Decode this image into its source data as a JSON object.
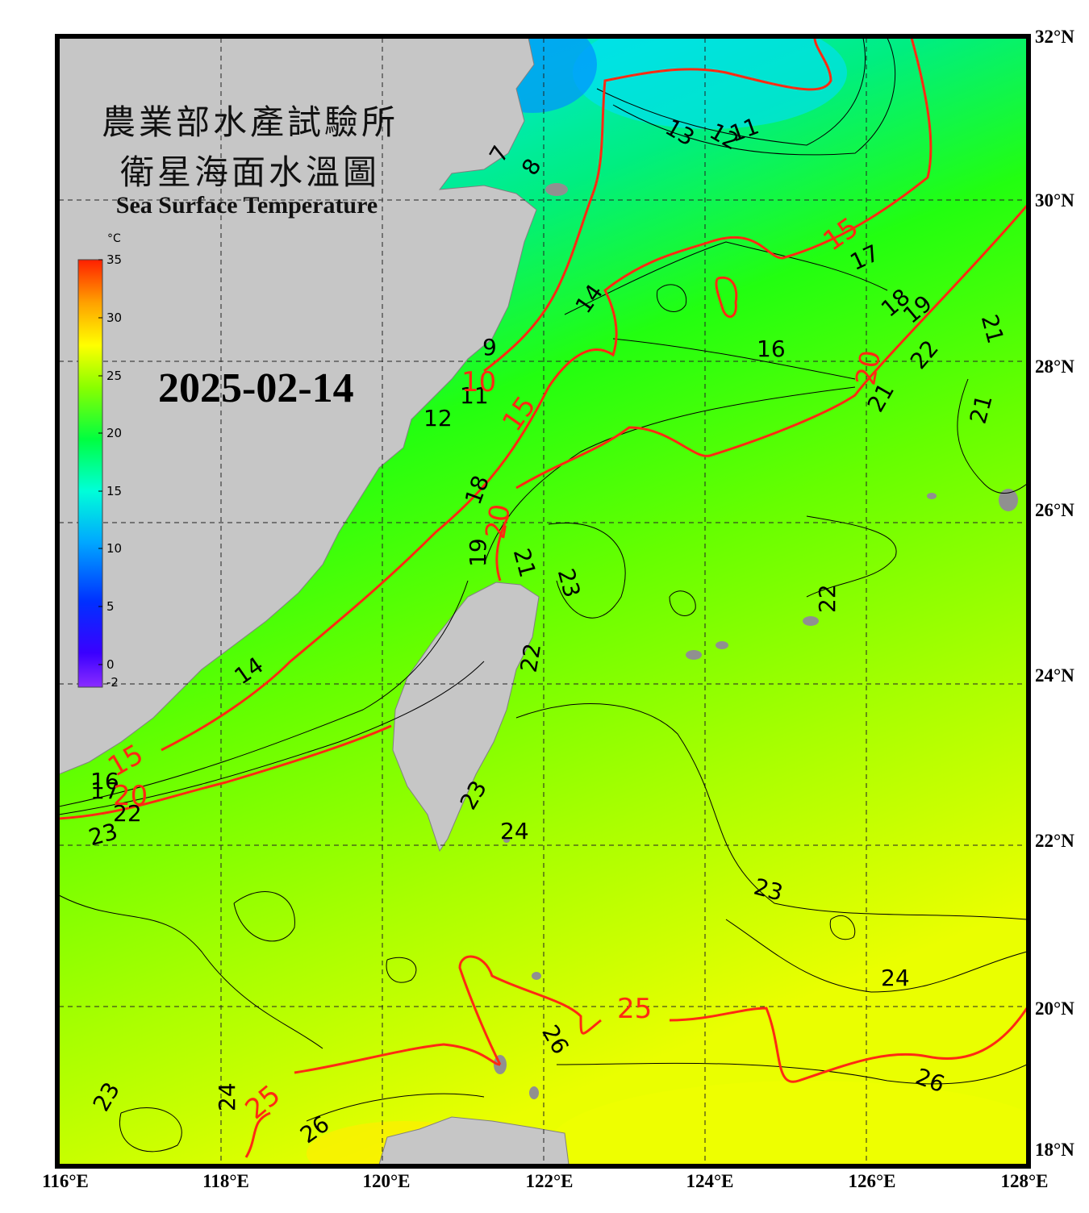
{
  "title": {
    "line1": "農業部水產試驗所",
    "line2": "衛星海面水溫圖",
    "english": "Sea Surface Temperature"
  },
  "date": "2025-02-14",
  "colorbar": {
    "unit": "°C",
    "ticks": [
      "35",
      "30",
      "25",
      "20",
      "15",
      "10",
      "5",
      "0",
      "-2"
    ],
    "range": [
      -2,
      35
    ],
    "colors": [
      "#7a2cff",
      "#0000ff",
      "#00a0ff",
      "#00ffe0",
      "#00ff40",
      "#66ff00",
      "#ccff00",
      "#ffff00",
      "#ffb000",
      "#ff2a00"
    ]
  },
  "axes": {
    "latitude_labels": [
      "32°N",
      "30°N",
      "28°N",
      "26°N",
      "24°N",
      "22°N",
      "20°N",
      "18°N"
    ],
    "longitude_labels": [
      "116°E",
      "118°E",
      "120°E",
      "122°E",
      "124°E",
      "126°E",
      "128°E"
    ],
    "lat_range": [
      18,
      32
    ],
    "lon_range": [
      116,
      128
    ]
  },
  "isotherm_labels": {
    "red": [
      "10",
      "15",
      "15",
      "15",
      "20",
      "20",
      "20",
      "25",
      "25"
    ],
    "black": [
      "7",
      "8",
      "9",
      "11",
      "11",
      "12",
      "12",
      "13",
      "14",
      "14",
      "16",
      "16",
      "17",
      "17",
      "18",
      "18",
      "19",
      "19",
      "21",
      "21",
      "21",
      "21",
      "22",
      "22",
      "22",
      "22",
      "23",
      "23",
      "23",
      "23",
      "23",
      "24",
      "24",
      "24",
      "26",
      "26",
      "26"
    ]
  },
  "land_color": "#c6c6c6",
  "frame_color": "#000000"
}
